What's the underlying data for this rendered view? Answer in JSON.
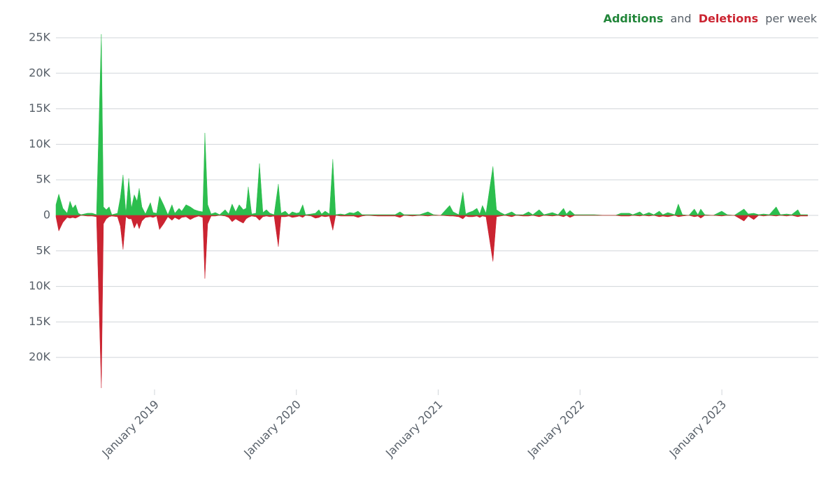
{
  "chart_data": {
    "type": "area",
    "legend_joiner": "and",
    "legend_suffix": "per week",
    "x": [
      2018.305,
      2018.325,
      2018.354,
      2018.384,
      2018.404,
      2018.423,
      2018.443,
      2018.463,
      2018.482,
      2018.527,
      2018.561,
      2018.591,
      2018.625,
      2018.64,
      2018.66,
      2018.68,
      2018.699,
      2018.739,
      2018.759,
      2018.778,
      2018.798,
      2018.818,
      2018.837,
      2018.857,
      2018.877,
      2018.892,
      2018.911,
      2018.936,
      2018.971,
      2018.99,
      2019.015,
      2019.035,
      2019.064,
      2019.094,
      2019.123,
      2019.143,
      2019.173,
      2019.192,
      2019.222,
      2019.252,
      2019.281,
      2019.311,
      2019.34,
      2019.355,
      2019.375,
      2019.399,
      2019.429,
      2019.459,
      2019.498,
      2019.523,
      2019.547,
      2019.572,
      2019.597,
      2019.626,
      2019.646,
      2019.661,
      2019.685,
      2019.715,
      2019.74,
      2019.764,
      2019.789,
      2019.814,
      2019.843,
      2019.873,
      2019.892,
      2019.922,
      2019.947,
      2019.971,
      2020.001,
      2020.021,
      2020.045,
      2020.065,
      2020.104,
      2020.134,
      2020.159,
      2020.178,
      2020.203,
      2020.233,
      2020.257,
      2020.277,
      2020.312,
      2020.341,
      2020.376,
      2020.405,
      2020.435,
      2020.464,
      2020.499,
      2020.573,
      2020.637,
      2020.696,
      2020.731,
      2020.76,
      2020.819,
      2020.869,
      2020.928,
      2020.967,
      2021.017,
      2021.081,
      2021.105,
      2021.145,
      2021.174,
      2021.194,
      2021.214,
      2021.243,
      2021.273,
      2021.293,
      2021.312,
      2021.337,
      2021.386,
      2021.411,
      2021.44,
      2021.47,
      2021.519,
      2021.549,
      2021.598,
      2021.637,
      2021.667,
      2021.712,
      2021.746,
      2021.805,
      2021.845,
      2021.884,
      2021.904,
      2021.929,
      2021.963,
      2022.027,
      2022.101,
      2022.175,
      2022.249,
      2022.288,
      2022.348,
      2022.372,
      2022.422,
      2022.446,
      2022.486,
      2022.52,
      2022.559,
      2022.584,
      2022.619,
      2022.668,
      2022.693,
      2022.722,
      2022.767,
      2022.806,
      2022.831,
      2022.851,
      2022.88,
      2022.939,
      2022.999,
      2023.038,
      2023.087,
      2023.156,
      2023.186,
      2023.225,
      2023.26,
      2023.294,
      2023.334,
      2023.383,
      2023.413,
      2023.457,
      2023.491,
      2023.536,
      2023.555,
      2023.605
    ],
    "series": [
      {
        "name": "Additions",
        "color": "#2cbe4e",
        "values": [
          1500,
          3000,
          1000,
          300,
          2000,
          1000,
          1500,
          300,
          100,
          300,
          300,
          100,
          25500,
          1200,
          800,
          1200,
          100,
          300,
          2500,
          5700,
          300,
          5200,
          1000,
          2900,
          2000,
          3800,
          1200,
          200,
          1800,
          400,
          300,
          2700,
          1500,
          100,
          1500,
          300,
          1000,
          600,
          1500,
          1200,
          800,
          600,
          500,
          11600,
          1500,
          200,
          400,
          100,
          800,
          200,
          1600,
          500,
          1500,
          800,
          1000,
          4000,
          200,
          300,
          7300,
          400,
          800,
          300,
          100,
          4400,
          300,
          600,
          100,
          500,
          300,
          400,
          1500,
          100,
          200,
          300,
          800,
          200,
          600,
          200,
          7900,
          100,
          200,
          100,
          400,
          300,
          600,
          100,
          100,
          100,
          100,
          100,
          500,
          100,
          100,
          100,
          500,
          100,
          0,
          1400,
          500,
          100,
          3300,
          200,
          400,
          600,
          1000,
          200,
          1400,
          300,
          6900,
          800,
          400,
          100,
          500,
          100,
          100,
          500,
          100,
          800,
          100,
          400,
          100,
          1000,
          200,
          700,
          100,
          100,
          100,
          0,
          0,
          300,
          300,
          100,
          500,
          100,
          400,
          100,
          600,
          100,
          400,
          100,
          1600,
          100,
          0,
          900,
          100,
          900,
          100,
          0,
          600,
          100,
          0,
          900,
          200,
          300,
          100,
          200,
          100,
          1200,
          100,
          200,
          100,
          800,
          100,
          100
        ]
      },
      {
        "name": "Deletions",
        "color": "#cb2431",
        "values": [
          -200,
          -2200,
          -1000,
          -300,
          -400,
          -300,
          -400,
          -200,
          0,
          -100,
          -100,
          -200,
          -24300,
          -1200,
          -500,
          -200,
          -100,
          -200,
          -1500,
          -4800,
          -200,
          -500,
          -500,
          -1800,
          -1000,
          -1900,
          -800,
          -300,
          -200,
          -300,
          -100,
          -2000,
          -1200,
          -200,
          -700,
          -300,
          -600,
          -300,
          -200,
          -600,
          -300,
          -100,
          -300,
          -8900,
          -1200,
          -100,
          -100,
          0,
          -100,
          -300,
          -900,
          -500,
          -800,
          -1100,
          -500,
          -300,
          -100,
          -200,
          -700,
          -200,
          -100,
          -200,
          -100,
          -4400,
          -200,
          -200,
          -100,
          -300,
          -200,
          -100,
          -300,
          0,
          -100,
          -400,
          -300,
          -100,
          -200,
          -100,
          -2100,
          0,
          -100,
          -100,
          -100,
          -100,
          -300,
          -100,
          0,
          -100,
          -100,
          -100,
          -300,
          0,
          -100,
          0,
          -100,
          0,
          0,
          -100,
          -100,
          -200,
          -500,
          -100,
          -200,
          -200,
          -100,
          -300,
          -100,
          -200,
          -6500,
          -200,
          -100,
          0,
          -200,
          0,
          -100,
          -100,
          0,
          -200,
          0,
          -100,
          0,
          -200,
          0,
          -300,
          0,
          0,
          0,
          0,
          0,
          -100,
          -100,
          0,
          -100,
          0,
          -100,
          0,
          -200,
          -100,
          -200,
          0,
          -200,
          -100,
          0,
          -200,
          -100,
          -400,
          0,
          0,
          -100,
          0,
          0,
          -800,
          -100,
          -600,
          0,
          -100,
          0,
          -100,
          0,
          -100,
          0,
          -200,
          -100,
          -100
        ]
      }
    ],
    "xlim": [
      2018.305,
      2023.68
    ],
    "xticks": [
      {
        "value": 2019,
        "label": "January 2019"
      },
      {
        "value": 2020,
        "label": "January 2020"
      },
      {
        "value": 2021,
        "label": "January 2021"
      },
      {
        "value": 2022,
        "label": "January 2022"
      },
      {
        "value": 2023,
        "label": "January 2023"
      }
    ],
    "ylim": [
      -24500,
      25500
    ],
    "yticks": [
      {
        "value": 25000,
        "label": "25K"
      },
      {
        "value": 20000,
        "label": "20K"
      },
      {
        "value": 15000,
        "label": "15K"
      },
      {
        "value": 10000,
        "label": "10K"
      },
      {
        "value": 5000,
        "label": "5K"
      },
      0,
      {
        "value": -5000,
        "label": "5K"
      },
      {
        "value": -10000,
        "label": "10K"
      },
      {
        "value": -15000,
        "label": "15K"
      },
      {
        "value": -20000,
        "label": "20K"
      }
    ],
    "grid": true
  }
}
